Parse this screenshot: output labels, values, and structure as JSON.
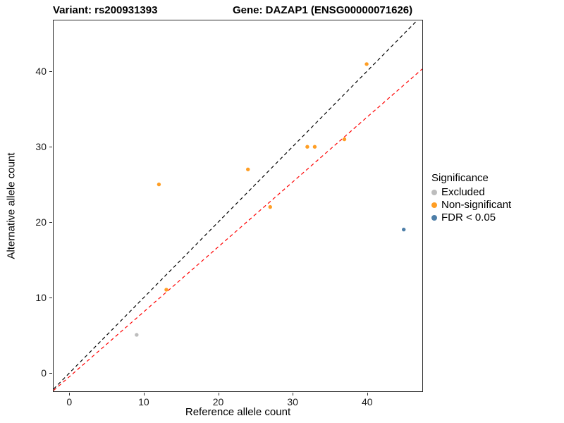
{
  "header": {
    "variant_title": "Variant: rs200931393",
    "gene_title": "Gene: DAZAP1 (ENSG00000071626)"
  },
  "chart_data": {
    "type": "scatter",
    "title": "Variant: rs200931393 / Gene: DAZAP1 (ENSG00000071626)",
    "xlabel": "Reference allele count",
    "ylabel": "Alternative allele count",
    "xlim": [
      -2.2,
      47.5
    ],
    "ylim": [
      -2.5,
      46.8
    ],
    "xticks": [
      0,
      10,
      20,
      30,
      40
    ],
    "yticks": [
      0,
      10,
      20,
      30,
      40
    ],
    "grid": false,
    "legend": {
      "title": "Significance",
      "position": "right"
    },
    "series": [
      {
        "name": "Excluded",
        "color": "#bdbdbd",
        "points": [
          [
            9,
            5
          ]
        ]
      },
      {
        "name": "Non-significant",
        "color": "#ff9e24",
        "points": [
          [
            12,
            25
          ],
          [
            13,
            11
          ],
          [
            24,
            27
          ],
          [
            27,
            22
          ],
          [
            32,
            30
          ],
          [
            33,
            30
          ],
          [
            37,
            31
          ],
          [
            40,
            41
          ]
        ]
      },
      {
        "name": "FDR < 0.05",
        "color": "#4d7ea8",
        "points": [
          [
            45,
            19
          ]
        ]
      }
    ],
    "lines": [
      {
        "name": "identity-line",
        "slope": 1.0,
        "intercept": 0.0,
        "color": "#000000",
        "dash": "5,4"
      },
      {
        "name": "regression-line",
        "slope": 0.86,
        "intercept": -0.5,
        "color": "#ff0000",
        "dash": "5,4"
      }
    ]
  }
}
